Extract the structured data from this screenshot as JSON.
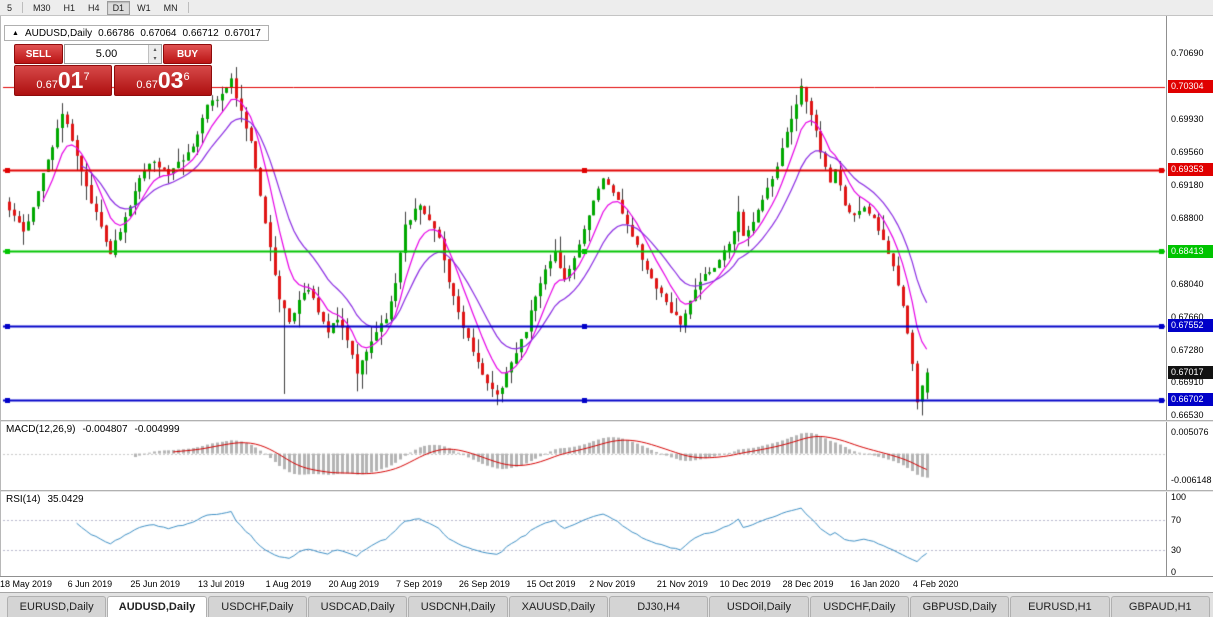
{
  "toolbar": {
    "timeframes": [
      "5",
      "M30",
      "H1",
      "H4",
      "D1",
      "W1",
      "MN"
    ],
    "active": "D1"
  },
  "chart": {
    "header": {
      "symbol": "AUDUSD,Daily",
      "open": "0.66786",
      "high": "0.67064",
      "low": "0.66712",
      "close": "0.67017"
    },
    "trade_panel": {
      "sell_label": "SELL",
      "buy_label": "BUY",
      "volume": "5.00",
      "sell_price": {
        "prefix": "0.67",
        "big": "01",
        "sup": "7"
      },
      "buy_price": {
        "prefix": "0.67",
        "big": "03",
        "sup": "6"
      }
    }
  },
  "chart_data": {
    "type": "candlestick",
    "symbol": "AUDUSD",
    "timeframe": "Daily",
    "last_ohlc": {
      "open": 0.66786,
      "high": 0.67064,
      "low": 0.66712,
      "close": 0.67017
    },
    "price_range": {
      "top": 0.7112,
      "bottom": 0.6647
    },
    "bars": 191,
    "colors": {
      "up": "#00a800",
      "down": "#e01515",
      "wick": "#3c3c3c"
    },
    "anchors": [
      [
        0,
        0.689
      ],
      [
        3,
        0.6862
      ],
      [
        7,
        0.693
      ],
      [
        11,
        0.7
      ],
      [
        14,
        0.6952
      ],
      [
        17,
        0.6898
      ],
      [
        19,
        0.6868
      ],
      [
        21,
        0.6836
      ],
      [
        24,
        0.688
      ],
      [
        27,
        0.6925
      ],
      [
        30,
        0.6945
      ],
      [
        33,
        0.693
      ],
      [
        36,
        0.6946
      ],
      [
        39,
        0.6975
      ],
      [
        41,
        0.7008
      ],
      [
        44,
        0.7024
      ],
      [
        46,
        0.7039
      ],
      [
        48,
        0.7002
      ],
      [
        50,
        0.6968
      ],
      [
        52,
        0.6905
      ],
      [
        54,
        0.6845
      ],
      [
        56,
        0.6786
      ],
      [
        58,
        0.676
      ],
      [
        60,
        0.6786
      ],
      [
        62,
        0.6798
      ],
      [
        64,
        0.677
      ],
      [
        66,
        0.6748
      ],
      [
        68,
        0.6762
      ],
      [
        70,
        0.674
      ],
      [
        72,
        0.67
      ],
      [
        74,
        0.6724
      ],
      [
        76,
        0.675
      ],
      [
        78,
        0.6764
      ],
      [
        80,
        0.6806
      ],
      [
        82,
        0.687
      ],
      [
        85,
        0.6895
      ],
      [
        87,
        0.6878
      ],
      [
        89,
        0.6855
      ],
      [
        91,
        0.6806
      ],
      [
        93,
        0.677
      ],
      [
        95,
        0.674
      ],
      [
        97,
        0.6712
      ],
      [
        99,
        0.6688
      ],
      [
        101,
        0.6675
      ],
      [
        103,
        0.67
      ],
      [
        105,
        0.6724
      ],
      [
        107,
        0.675
      ],
      [
        109,
        0.679
      ],
      [
        111,
        0.6822
      ],
      [
        113,
        0.684
      ],
      [
        115,
        0.6808
      ],
      [
        117,
        0.6835
      ],
      [
        119,
        0.6865
      ],
      [
        121,
        0.69
      ],
      [
        123,
        0.6925
      ],
      [
        125,
        0.691
      ],
      [
        127,
        0.6885
      ],
      [
        129,
        0.6858
      ],
      [
        131,
        0.6832
      ],
      [
        133,
        0.681
      ],
      [
        135,
        0.6792
      ],
      [
        137,
        0.6772
      ],
      [
        139,
        0.6758
      ],
      [
        141,
        0.6785
      ],
      [
        143,
        0.6805
      ],
      [
        145,
        0.6818
      ],
      [
        147,
        0.6832
      ],
      [
        149,
        0.685
      ],
      [
        151,
        0.6886
      ],
      [
        152,
        0.686
      ],
      [
        154,
        0.6875
      ],
      [
        156,
        0.69
      ],
      [
        158,
        0.6925
      ],
      [
        160,
        0.6958
      ],
      [
        162,
        0.6995
      ],
      [
        164,
        0.7032
      ],
      [
        166,
        0.7
      ],
      [
        168,
        0.6955
      ],
      [
        170,
        0.692
      ],
      [
        171,
        0.6935
      ],
      [
        173,
        0.6895
      ],
      [
        175,
        0.6882
      ],
      [
        177,
        0.689
      ],
      [
        179,
        0.6878
      ],
      [
        181,
        0.6855
      ],
      [
        183,
        0.6825
      ],
      [
        185,
        0.678
      ],
      [
        186,
        0.6745
      ],
      [
        187,
        0.6712
      ],
      [
        188,
        0.6668
      ],
      [
        189,
        0.6685
      ],
      [
        190,
        0.67017
      ]
    ],
    "wicks": [
      [
        46,
        "h",
        0.7046
      ],
      [
        57,
        "l",
        0.6677
      ],
      [
        72,
        "l",
        0.668
      ],
      [
        101,
        "l",
        0.6664
      ],
      [
        139,
        "l",
        0.6754
      ],
      [
        151,
        "h",
        0.6905
      ],
      [
        164,
        "h",
        0.704
      ],
      [
        188,
        "l",
        0.6662
      ]
    ],
    "moving_averages": [
      {
        "period": 7,
        "color": "#e600e6"
      },
      {
        "period": 15,
        "color": "#8a2be2"
      }
    ],
    "levels": [
      {
        "price": 0.70304,
        "label": "0.70304",
        "color": "#e00000",
        "width": 1,
        "handles": false
      },
      {
        "price": 0.69353,
        "label": "0.69353",
        "color": "#e00000",
        "width": 2,
        "handles": true
      },
      {
        "price": 0.68413,
        "label": "0.68413",
        "color": "#00c400",
        "width": 2,
        "handles": true
      },
      {
        "price": 0.67552,
        "label": "0.67552",
        "color": "#0000c8",
        "width": 2,
        "handles": true
      },
      {
        "price": 0.66702,
        "label": "0.66702",
        "color": "#0000c8",
        "width": 2,
        "handles": true
      }
    ],
    "current_price": {
      "value": 0.67017,
      "label": "0.67017",
      "color": "#111111"
    },
    "y_axis_ticks": [
      "0.70690",
      "0.70310",
      "0.69930",
      "0.69560",
      "0.69180",
      "0.68800",
      "0.68420",
      "0.68040",
      "0.67660",
      "0.67280",
      "0.66910",
      "0.66530"
    ],
    "x_axis_labels": [
      {
        "label": "18 May 2019",
        "bar": 0
      },
      {
        "label": "6 Jun 2019",
        "bar": 14
      },
      {
        "label": "25 Jun 2019",
        "bar": 27
      },
      {
        "label": "13 Jul 2019",
        "bar": 41
      },
      {
        "label": "1 Aug 2019",
        "bar": 55
      },
      {
        "label": "20 Aug 2019",
        "bar": 68
      },
      {
        "label": "7 Sep 2019",
        "bar": 82
      },
      {
        "label": "26 Sep 2019",
        "bar": 95
      },
      {
        "label": "15 Oct 2019",
        "bar": 109
      },
      {
        "label": "2 Nov 2019",
        "bar": 122
      },
      {
        "label": "21 Nov 2019",
        "bar": 136
      },
      {
        "label": "10 Dec 2019",
        "bar": 149
      },
      {
        "label": "28 Dec 2019",
        "bar": 162
      },
      {
        "label": "16 Jan 2020",
        "bar": 176
      },
      {
        "label": "4 Feb 2020",
        "bar": 189
      }
    ],
    "macd": {
      "name": "MACD(12,26,9)",
      "value_main": "-0.004807",
      "value_signal": "-0.004999",
      "fast": 12,
      "slow": 26,
      "signal": 9,
      "histogram_color": "#b4b4b4",
      "signal_color": "#d40000",
      "axis_ticks": [
        {
          "label": "0.005076",
          "value": 0.005076
        },
        {
          "label": "-0.006148",
          "value": -0.006148
        }
      ]
    },
    "rsi": {
      "name": "RSI(14)",
      "value": "35.0429",
      "period": 14,
      "line_color": "#3e8fc4",
      "levels": [
        70,
        30
      ],
      "axis_ticks": [
        {
          "label": "100",
          "value": 100
        },
        {
          "label": "70",
          "value": 70
        },
        {
          "label": "30",
          "value": 30
        },
        {
          "label": "0",
          "value": 0
        }
      ]
    }
  },
  "tabs": {
    "items": [
      {
        "label": "EURUSD,Daily"
      },
      {
        "label": "AUDUSD,Daily",
        "active": true
      },
      {
        "label": "USDCHF,Daily"
      },
      {
        "label": "USDCAD,Daily"
      },
      {
        "label": "USDCNH,Daily"
      },
      {
        "label": "XAUUSD,Daily"
      },
      {
        "label": "DJ30,H4"
      },
      {
        "label": "USDOil,Daily"
      },
      {
        "label": "USDCHF,Daily"
      },
      {
        "label": "GBPUSD,Daily"
      },
      {
        "label": "EURUSD,H1"
      },
      {
        "label": "GBPAUD,H1"
      }
    ]
  }
}
